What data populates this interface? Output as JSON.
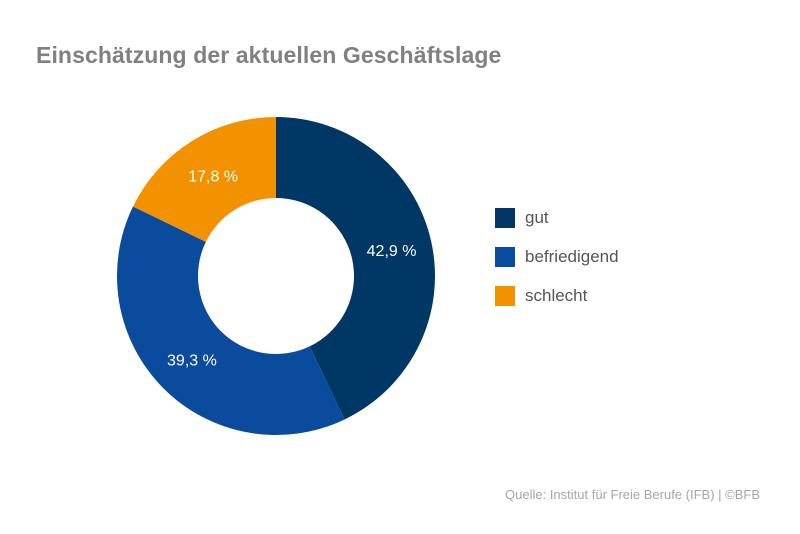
{
  "chart_data": {
    "type": "pie",
    "variant": "donut",
    "title": "Einschätzung der aktuellen Geschäftslage",
    "categories": [
      "gut",
      "befriedigend",
      "schlecht"
    ],
    "values": [
      42.9,
      39.3,
      17.8
    ],
    "value_labels": [
      "42,9 %",
      "39,3 %",
      "17,8 %"
    ],
    "colors": [
      "#003865",
      "#0a4b9e",
      "#f39200"
    ],
    "legend_position": "right",
    "source": "Quelle: Institut für Freie Berufe (IFB)  |  ©BFB"
  }
}
